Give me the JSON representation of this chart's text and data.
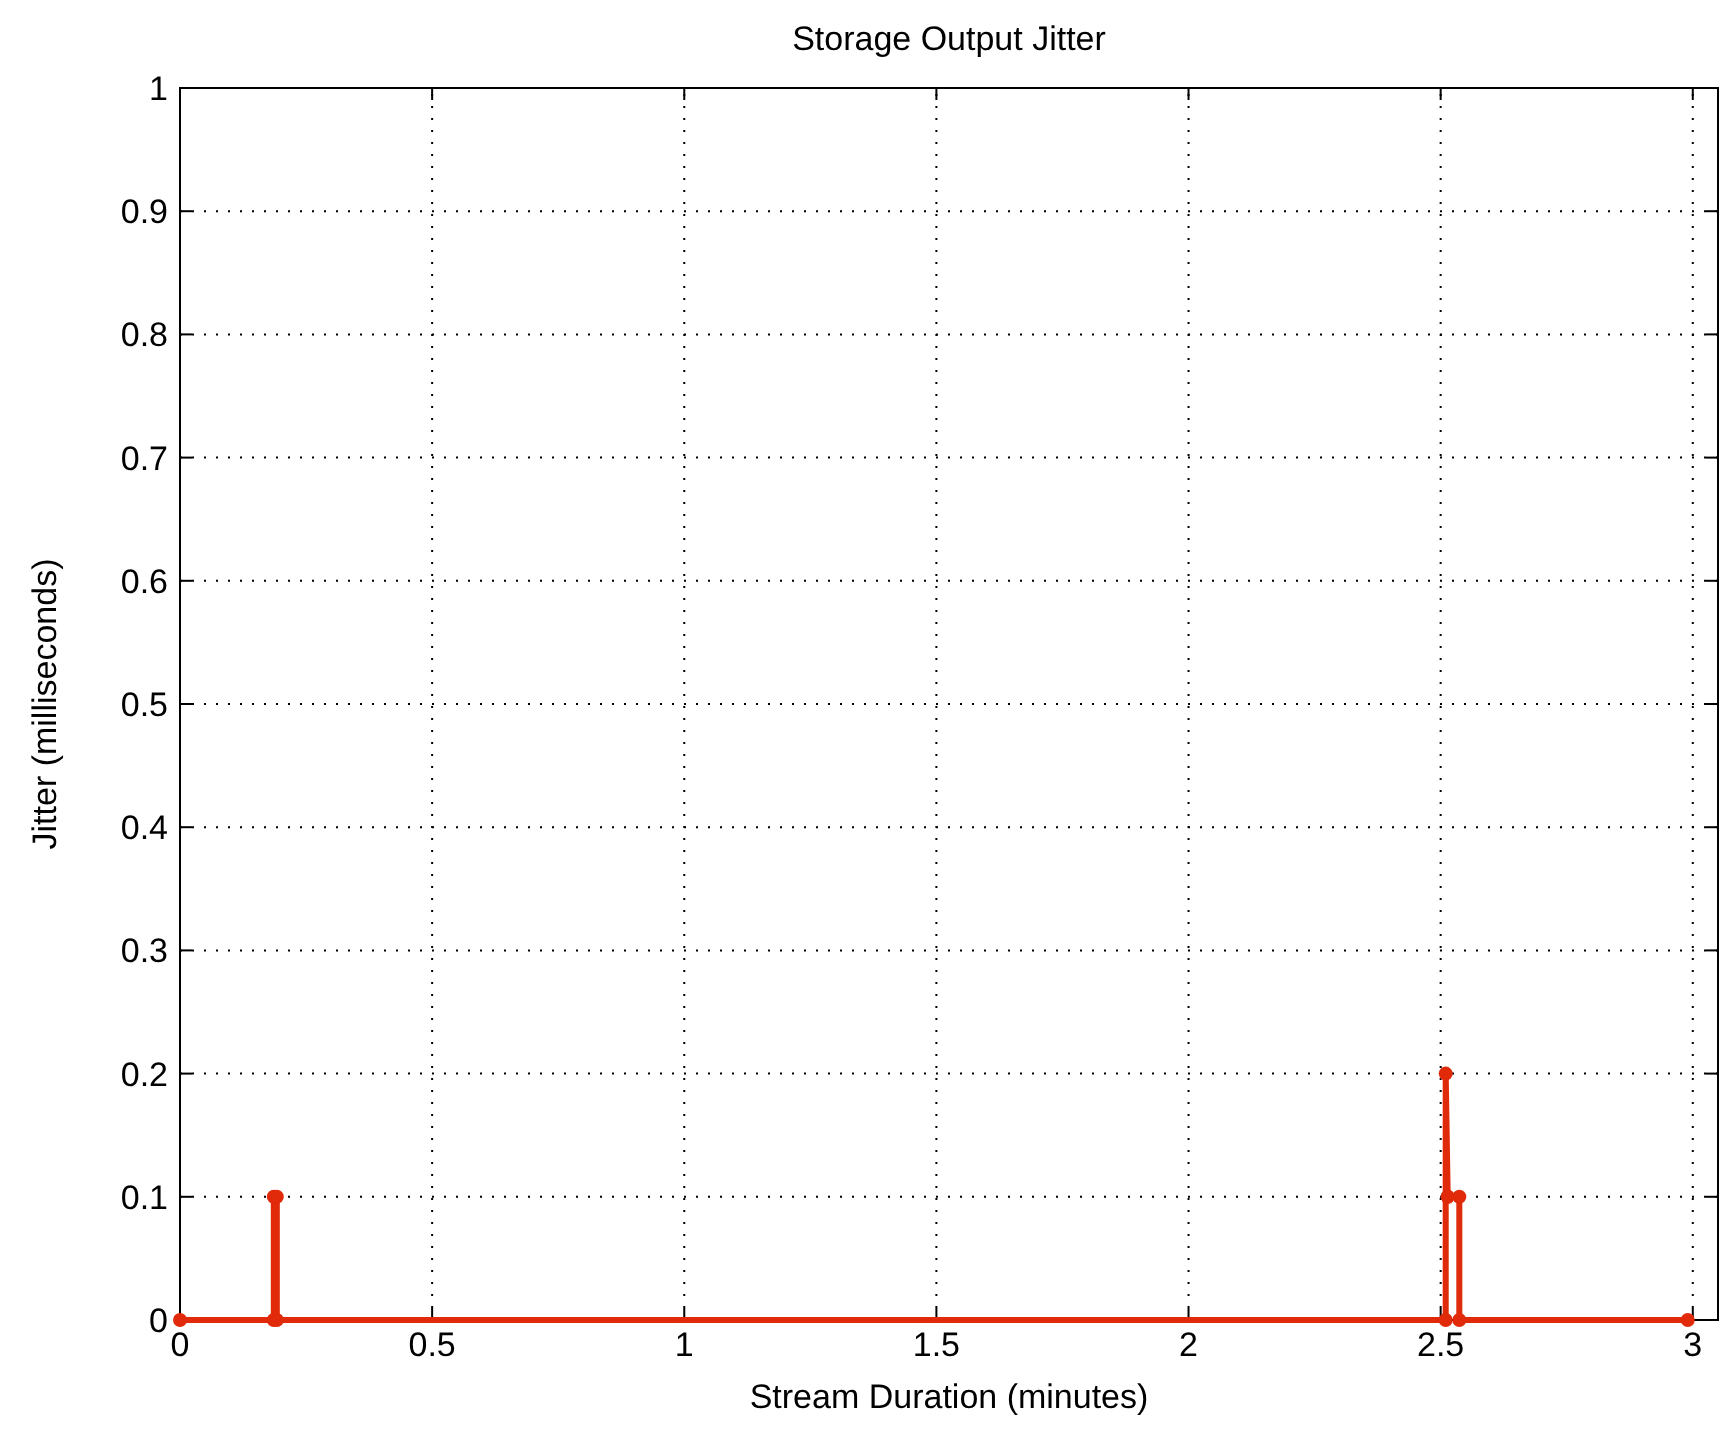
{
  "chart_data": {
    "type": "line",
    "title": "Storage Output Jitter",
    "xlabel": "Stream Duration (minutes)",
    "ylabel": "Jitter (milliseconds)",
    "x": [
      0,
      0.186,
      0.186,
      0.192,
      0.192,
      2.51,
      2.51,
      2.514,
      2.514,
      2.537,
      2.537,
      2.99
    ],
    "series": [
      {
        "color": "#e02a0a",
        "values": [
          0,
          0,
          0.1,
          0.1,
          0,
          0,
          0.2,
          0.1,
          0.1,
          0.1,
          0,
          0
        ]
      }
    ],
    "xlim": [
      0,
      3.05
    ],
    "xticks": [
      0,
      0.5,
      1,
      1.5,
      2,
      2.5,
      3
    ],
    "ylim": [
      0,
      1
    ],
    "yticks": [
      0,
      0.1,
      0.2,
      0.3,
      0.4,
      0.5,
      0.6,
      0.7,
      0.8,
      0.9,
      1
    ],
    "grid": true,
    "marker": "circle",
    "line_style": "solid"
  }
}
